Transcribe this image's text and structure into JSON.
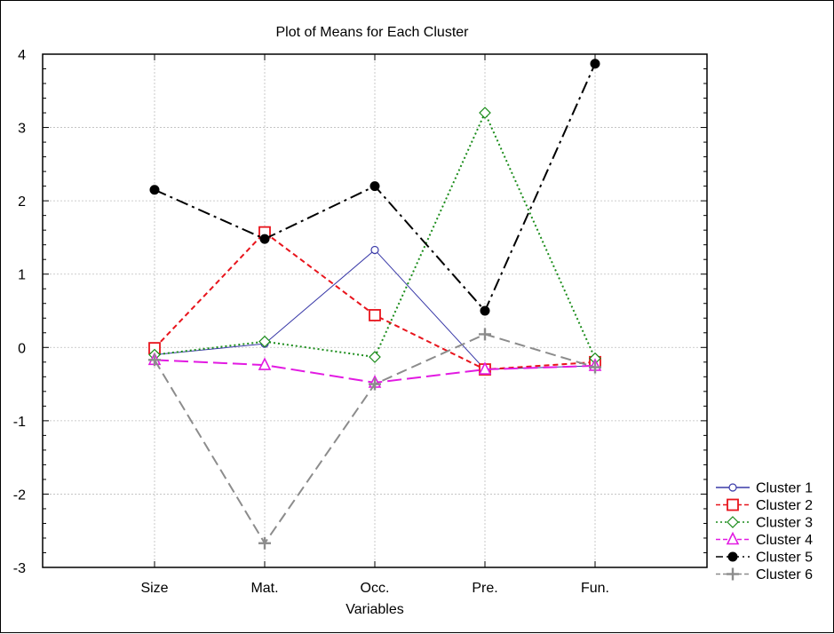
{
  "chart_data": {
    "type": "line",
    "title": "Plot of Means for Each Cluster",
    "xlabel": "Variables",
    "ylabel": "",
    "categories": [
      "Size",
      "Mat.",
      "Occ.",
      "Pre.",
      "Fun."
    ],
    "ylim": [
      -3,
      4
    ],
    "yticks": [
      4,
      3,
      2,
      1,
      0,
      -1,
      -2,
      -3
    ],
    "ytick_labels": [
      "4",
      "3",
      "2",
      "1",
      "0",
      "-1",
      "-2",
      "-3"
    ],
    "grid": true,
    "legend_position": "bottom-right",
    "series": [
      {
        "name": "Cluster  1",
        "values": [
          -0.1,
          0.05,
          1.33,
          -0.3,
          -0.25
        ],
        "color": "#3a3aa8",
        "marker": "circle-open",
        "dash": "solid"
      },
      {
        "name": "Cluster  2",
        "values": [
          -0.01,
          1.57,
          0.44,
          -0.3,
          -0.2
        ],
        "color": "#e8141c",
        "marker": "square-open",
        "dash": "dashed"
      },
      {
        "name": "Cluster  3",
        "values": [
          -0.1,
          0.08,
          -0.13,
          3.2,
          -0.15
        ],
        "color": "#1a8c1a",
        "marker": "diamond-open",
        "dash": "dotted"
      },
      {
        "name": "Cluster  4",
        "values": [
          -0.17,
          -0.24,
          -0.48,
          -0.3,
          -0.25
        ],
        "color": "#e21ae2",
        "marker": "triangle-open",
        "dash": "longdash"
      },
      {
        "name": "Cluster  5",
        "values": [
          2.15,
          1.48,
          2.2,
          0.5,
          3.87
        ],
        "color": "#000000",
        "marker": "circle-filled",
        "dash": "dashdot"
      },
      {
        "name": "Cluster  6",
        "values": [
          -0.17,
          -2.67,
          -0.5,
          0.18,
          -0.27
        ],
        "color": "#8c8c8c",
        "marker": "plus",
        "dash": "dashed-long"
      }
    ]
  }
}
